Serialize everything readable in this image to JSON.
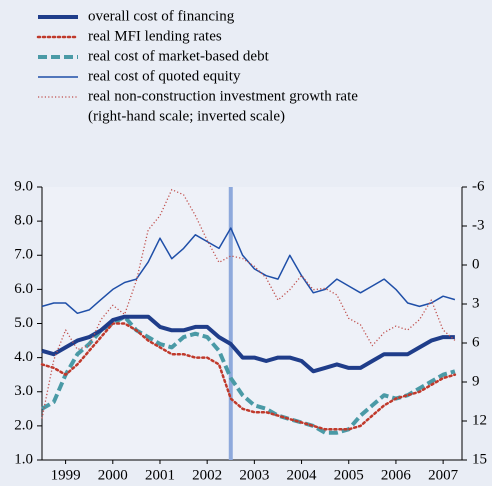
{
  "chart_data": {
    "type": "line",
    "x": [
      1999.0,
      1999.25,
      1999.5,
      1999.75,
      2000.0,
      2000.25,
      2000.5,
      2000.75,
      2001.0,
      2001.25,
      2001.5,
      2001.75,
      2002.0,
      2002.25,
      2002.5,
      2002.75,
      2003.0,
      2003.25,
      2003.5,
      2003.75,
      2004.0,
      2004.25,
      2004.5,
      2004.75,
      2005.0,
      2005.25,
      2005.5,
      2005.75,
      2006.0,
      2006.25,
      2006.5,
      2006.75,
      2007.0,
      2007.25,
      2007.5,
      2007.75
    ],
    "xlim": [
      1999,
      2007.9
    ],
    "xticks": [
      {
        "value": 1999.5,
        "label": "1999"
      },
      {
        "value": 2000.5,
        "label": "2000"
      },
      {
        "value": 2001.5,
        "label": "2001"
      },
      {
        "value": 2002.5,
        "label": "2002"
      },
      {
        "value": 2003.5,
        "label": "2003"
      },
      {
        "value": 2004.5,
        "label": "2004"
      },
      {
        "value": 2005.5,
        "label": "2005"
      },
      {
        "value": 2006.5,
        "label": "2006"
      },
      {
        "value": 2007.5,
        "label": "2007"
      }
    ],
    "ylim": [
      1,
      9
    ],
    "yticks": [
      {
        "value": 1,
        "label": "1.0"
      },
      {
        "value": 2,
        "label": "2.0"
      },
      {
        "value": 3,
        "label": "3.0"
      },
      {
        "value": 4,
        "label": "4.0"
      },
      {
        "value": 5,
        "label": "5.0"
      },
      {
        "value": 6,
        "label": "6.0"
      },
      {
        "value": 7,
        "label": "7.0"
      },
      {
        "value": 8,
        "label": "8.0"
      },
      {
        "value": 9,
        "label": "9.0"
      }
    ],
    "y2lim": [
      -6,
      15
    ],
    "y2ticks": [
      -6,
      -3,
      0,
      3,
      6,
      9,
      12,
      15
    ],
    "y2_inverted": true,
    "reference_line_x": 2003,
    "legend_note": "(right-hand scale; inverted scale)",
    "series": [
      {
        "name": "overall cost of financing",
        "color": "#1f3d8a",
        "line_style": "solid",
        "line_width": 4,
        "values": [
          4.2,
          4.1,
          4.3,
          4.5,
          4.6,
          4.8,
          5.1,
          5.2,
          5.2,
          5.2,
          4.9,
          4.8,
          4.8,
          4.9,
          4.9,
          4.6,
          4.4,
          4.0,
          4.0,
          3.9,
          4.0,
          4.0,
          3.9,
          3.6,
          3.7,
          3.8,
          3.7,
          3.7,
          3.9,
          4.1,
          4.1,
          4.1,
          4.3,
          4.5,
          4.6,
          4.6
        ]
      },
      {
        "name": "real MFI lending rates",
        "color": "#c0392b",
        "line_style": "dotted",
        "line_width": 2.5,
        "values": [
          3.8,
          3.7,
          3.5,
          3.8,
          4.2,
          4.6,
          5.0,
          5.0,
          4.8,
          4.5,
          4.3,
          4.1,
          4.1,
          4.0,
          4.0,
          3.8,
          2.8,
          2.5,
          2.4,
          2.4,
          2.3,
          2.2,
          2.1,
          2.0,
          1.9,
          1.9,
          1.9,
          2.0,
          2.3,
          2.6,
          2.8,
          2.9,
          3.0,
          3.2,
          3.4,
          3.5
        ]
      },
      {
        "name": "real cost of market-based debt",
        "color": "#4a9aa6",
        "line_style": "dashed",
        "line_width": 4,
        "values": [
          2.5,
          2.7,
          3.5,
          4.1,
          4.4,
          4.8,
          5.0,
          5.2,
          4.8,
          4.6,
          4.4,
          4.3,
          4.6,
          4.7,
          4.6,
          4.2,
          3.4,
          2.9,
          2.6,
          2.5,
          2.3,
          2.2,
          2.1,
          2.0,
          1.8,
          1.8,
          1.9,
          2.3,
          2.6,
          2.9,
          2.8,
          2.9,
          3.1,
          3.3,
          3.5,
          3.6
        ]
      },
      {
        "name": "real cost of quoted equity",
        "color": "#1f4fa8",
        "line_style": "solid",
        "line_width": 1.5,
        "values": [
          5.5,
          5.6,
          5.6,
          5.3,
          5.4,
          5.7,
          6.0,
          6.2,
          6.3,
          6.8,
          7.5,
          6.9,
          7.2,
          7.6,
          7.4,
          7.2,
          7.8,
          7.0,
          6.6,
          6.4,
          6.3,
          7.0,
          6.4,
          5.9,
          6.0,
          6.3,
          6.1,
          5.9,
          6.1,
          6.3,
          6.0,
          5.6,
          5.5,
          5.6,
          5.8,
          5.7
        ]
      },
      {
        "name": "real non-construction investment growth rate",
        "color": "#c0504d",
        "line_style": "fine-dotted",
        "line_width": 1.3,
        "axis": "y2",
        "values": [
          11.8,
          7.3,
          5.0,
          6.5,
          6.2,
          4.2,
          3.1,
          3.8,
          1.2,
          -2.7,
          -3.8,
          -5.8,
          -5.4,
          -3.8,
          -1.9,
          -0.2,
          -0.7,
          -0.5,
          0.1,
          1.0,
          2.7,
          1.9,
          0.8,
          1.9,
          1.8,
          2.3,
          4.1,
          4.6,
          6.2,
          5.2,
          4.7,
          5.0,
          4.2,
          2.7,
          5.0,
          5.8
        ]
      }
    ]
  }
}
